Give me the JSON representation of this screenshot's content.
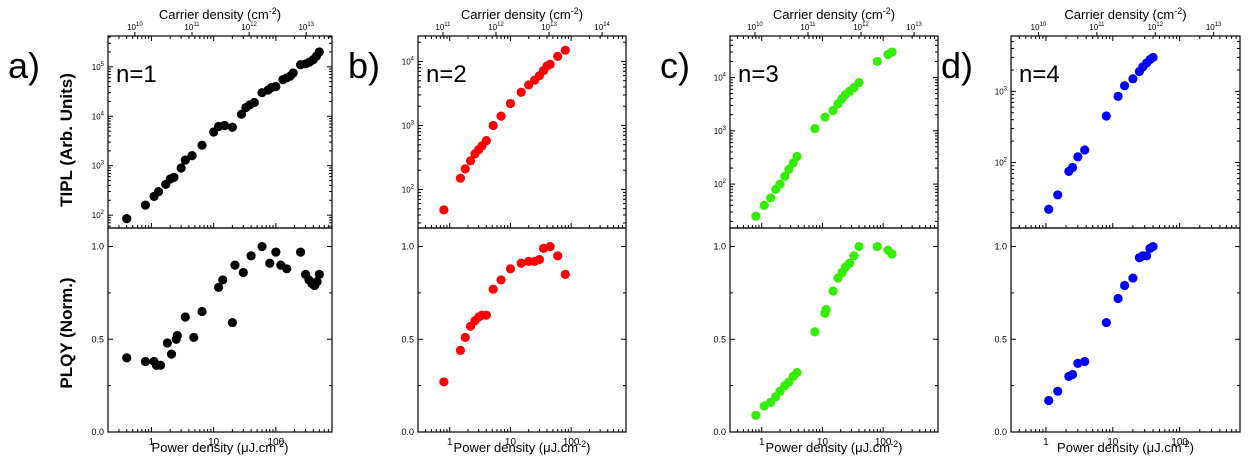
{
  "figure": {
    "shared_labels": {
      "top_xlabel": "Carrier density (cm",
      "top_xlabel_sup": "-2",
      "top_xlabel_close": ")",
      "bottom_xlabel": "Power density (μJ.cm",
      "bottom_xlabel_sup": "-2",
      "bottom_xlabel_close": ")",
      "ylabel_top": "TIPL (Arb. Units)",
      "ylabel_bottom": "PLQY (Norm.)"
    }
  },
  "chart_data": [
    {
      "type": "scatter",
      "panel_label": "a)",
      "annotation": "n=1",
      "color": "#000000",
      "x_scale": "log",
      "xlim": [
        0.2,
        800
      ],
      "x_ticks": [
        1,
        10,
        100
      ],
      "top_axis": {
        "scale": "log",
        "ticks": [
          "10",
          "11",
          "12",
          "13"
        ],
        "tick_base": "10"
      },
      "tipl": {
        "y_scale": "log",
        "ylim": [
          55,
          420000
        ],
        "y_ticks": [
          "2",
          "3",
          "4",
          "5"
        ],
        "y_tick_base": "10",
        "x": [
          0.4,
          0.8,
          1.1,
          1.3,
          1.7,
          2.0,
          2.3,
          3.0,
          3.5,
          4.5,
          6.5,
          10,
          12,
          15,
          20,
          28,
          33,
          38,
          45,
          60,
          75,
          85,
          100,
          130,
          150,
          170,
          190,
          250,
          300,
          350,
          400,
          450,
          500
        ],
        "y": [
          85,
          160,
          240,
          300,
          420,
          540,
          580,
          900,
          1300,
          1600,
          2600,
          4800,
          6200,
          6500,
          6000,
          11000,
          15000,
          17000,
          19000,
          30000,
          34000,
          38000,
          40000,
          55000,
          60000,
          65000,
          75000,
          110000,
          115000,
          125000,
          140000,
          165000,
          200000
        ]
      },
      "plqy": {
        "y_scale": "linear",
        "ylim": [
          0,
          1.1
        ],
        "y_ticks": [
          "0.0",
          "0.5",
          "1.0"
        ],
        "x": [
          0.4,
          0.8,
          1.1,
          1.2,
          1.4,
          1.8,
          2.1,
          2.5,
          2.6,
          3.5,
          4.8,
          6.5,
          12,
          14,
          20,
          22,
          30,
          40,
          60,
          80,
          100,
          120,
          150,
          250,
          300,
          340,
          380,
          420,
          460,
          500
        ],
        "y": [
          0.4,
          0.38,
          0.38,
          0.36,
          0.36,
          0.48,
          0.42,
          0.5,
          0.52,
          0.62,
          0.51,
          0.65,
          0.78,
          0.82,
          0.59,
          0.9,
          0.86,
          0.95,
          1.0,
          0.91,
          0.97,
          0.9,
          0.88,
          0.97,
          0.85,
          0.82,
          0.8,
          0.79,
          0.81,
          0.85
        ]
      }
    },
    {
      "type": "scatter",
      "panel_label": "b)",
      "annotation": "n=2",
      "color": "#ff0000",
      "x_scale": "log",
      "xlim": [
        0.3,
        800
      ],
      "x_ticks": [
        1,
        10,
        100
      ],
      "top_axis": {
        "scale": "log",
        "ticks": [
          "11",
          "12",
          "13",
          "14"
        ],
        "tick_base": "10"
      },
      "tipl": {
        "y_scale": "log",
        "ylim": [
          25,
          25000
        ],
        "y_ticks": [
          "2",
          "3",
          "4"
        ],
        "y_tick_base": "10",
        "x": [
          0.8,
          1.5,
          1.8,
          2.2,
          2.6,
          3.0,
          3.4,
          4.0,
          5.2,
          7.0,
          10,
          15,
          20,
          25,
          30,
          35,
          40,
          45,
          60,
          80
        ],
        "y": [
          48,
          150,
          210,
          280,
          360,
          420,
          480,
          580,
          1000,
          1400,
          2200,
          3300,
          4300,
          5100,
          6000,
          7200,
          8500,
          9000,
          12000,
          15000
        ]
      },
      "plqy": {
        "y_scale": "linear",
        "ylim": [
          0,
          1.1
        ],
        "y_ticks": [
          "0.0",
          "0.5",
          "1.0"
        ],
        "x": [
          0.8,
          1.5,
          1.8,
          2.2,
          2.6,
          3.0,
          3.4,
          4.0,
          5.2,
          7.0,
          10,
          15,
          20,
          25,
          30,
          35,
          45,
          60,
          80
        ],
        "y": [
          0.27,
          0.44,
          0.51,
          0.57,
          0.6,
          0.62,
          0.63,
          0.63,
          0.77,
          0.82,
          0.88,
          0.91,
          0.92,
          0.92,
          0.93,
          0.99,
          1.0,
          0.95,
          0.85
        ]
      }
    },
    {
      "type": "scatter",
      "panel_label": "c)",
      "annotation": "n=3",
      "color": "#33ee00",
      "x_scale": "log",
      "xlim": [
        0.3,
        800
      ],
      "x_ticks": [
        1,
        10,
        100
      ],
      "top_axis": {
        "scale": "log",
        "ticks": [
          "10",
          "11",
          "12",
          "13"
        ],
        "tick_base": "10"
      },
      "tipl": {
        "y_scale": "log",
        "ylim": [
          15,
          60000
        ],
        "y_ticks": [
          "2",
          "3",
          "4"
        ],
        "y_tick_base": "10",
        "x": [
          0.8,
          1.1,
          1.4,
          1.7,
          2.0,
          2.4,
          2.8,
          3.3,
          3.8,
          7.5,
          11,
          15,
          18,
          21,
          24,
          28,
          33,
          40,
          80,
          120,
          140
        ],
        "y": [
          25,
          40,
          55,
          80,
          100,
          140,
          190,
          250,
          330,
          1100,
          1800,
          2400,
          3200,
          4000,
          4800,
          5500,
          6500,
          8000,
          20000,
          27000,
          30000
        ]
      },
      "plqy": {
        "y_scale": "linear",
        "ylim": [
          0,
          1.1
        ],
        "y_ticks": [
          "0.0",
          "0.5",
          "1.0"
        ],
        "x": [
          0.8,
          1.1,
          1.4,
          1.7,
          2.0,
          2.4,
          2.8,
          3.3,
          3.8,
          7.5,
          11,
          11.5,
          15,
          18,
          21,
          24,
          28,
          33,
          40,
          80,
          120,
          140
        ],
        "y": [
          0.09,
          0.14,
          0.16,
          0.19,
          0.22,
          0.25,
          0.27,
          0.3,
          0.32,
          0.54,
          0.64,
          0.66,
          0.76,
          0.83,
          0.86,
          0.89,
          0.91,
          0.95,
          1.0,
          1.0,
          0.98,
          0.96
        ]
      }
    },
    {
      "type": "scatter",
      "panel_label": "d)",
      "annotation": "n=4",
      "color": "#0000ff",
      "x_scale": "log",
      "xlim": [
        0.3,
        800
      ],
      "x_ticks": [
        1,
        10,
        100
      ],
      "top_axis": {
        "scale": "log",
        "ticks": [
          "10",
          "11",
          "12",
          "13"
        ],
        "tick_base": "10"
      },
      "tipl": {
        "y_scale": "log",
        "ylim": [
          12,
          6000
        ],
        "y_ticks": [
          "2",
          "3"
        ],
        "y_tick_base": "10",
        "x": [
          1.1,
          1.5,
          2.2,
          2.5,
          3.0,
          3.8,
          8.0,
          12,
          15,
          20,
          25,
          28,
          32,
          36,
          40
        ],
        "y": [
          22,
          35,
          75,
          85,
          120,
          150,
          450,
          850,
          1200,
          1500,
          1900,
          2200,
          2500,
          2800,
          3000
        ]
      },
      "plqy": {
        "y_scale": "linear",
        "ylim": [
          0,
          1.1
        ],
        "y_ticks": [
          "0.0",
          "0.5",
          "1.0"
        ],
        "x": [
          1.1,
          1.5,
          2.2,
          2.5,
          3.0,
          3.8,
          8.0,
          12,
          15,
          20,
          25,
          28,
          32,
          36,
          40
        ],
        "y": [
          0.17,
          0.22,
          0.3,
          0.31,
          0.37,
          0.38,
          0.59,
          0.72,
          0.79,
          0.83,
          0.94,
          0.95,
          0.95,
          0.99,
          1.0
        ]
      }
    }
  ]
}
